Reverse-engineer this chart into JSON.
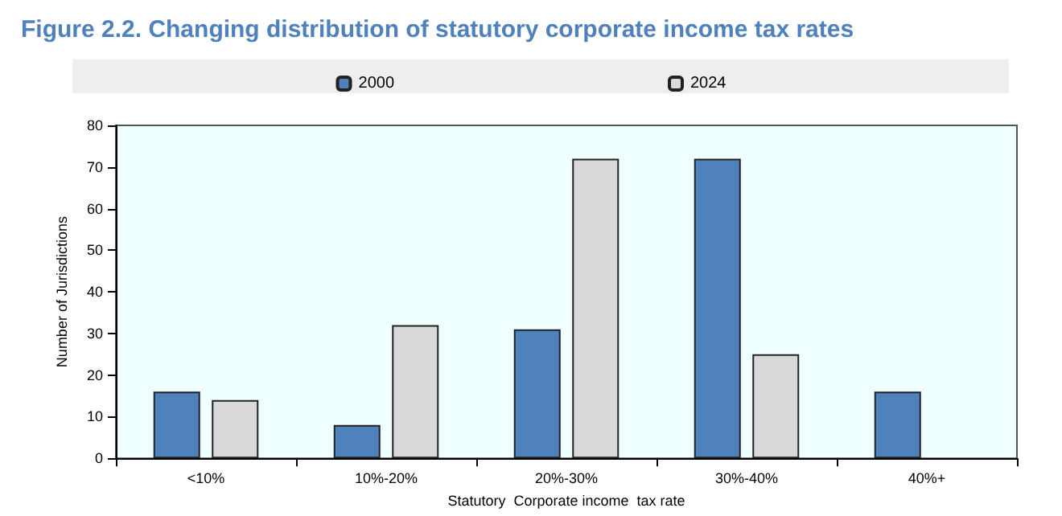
{
  "chart_data": {
    "type": "bar",
    "title": "Figure 2.2. Changing distribution of statutory corporate income tax rates",
    "xlabel": "Statutory  Corporate income  tax rate",
    "ylabel": "Number of Jurisdictions",
    "categories": [
      "<10%",
      "10%-20%",
      "20%-30%",
      "30%-40%",
      "40%+"
    ],
    "series": [
      {
        "name": "2000",
        "color": "#4f81bd",
        "values": [
          16,
          8,
          31,
          72,
          16
        ]
      },
      {
        "name": "2024",
        "color": "#d9d9d9",
        "values": [
          14,
          32,
          72,
          25,
          0
        ]
      }
    ],
    "ylim": [
      0,
      80
    ],
    "yticks": [
      0,
      10,
      20,
      30,
      40,
      50,
      60,
      70,
      80
    ],
    "grid": false,
    "legend": "top"
  }
}
